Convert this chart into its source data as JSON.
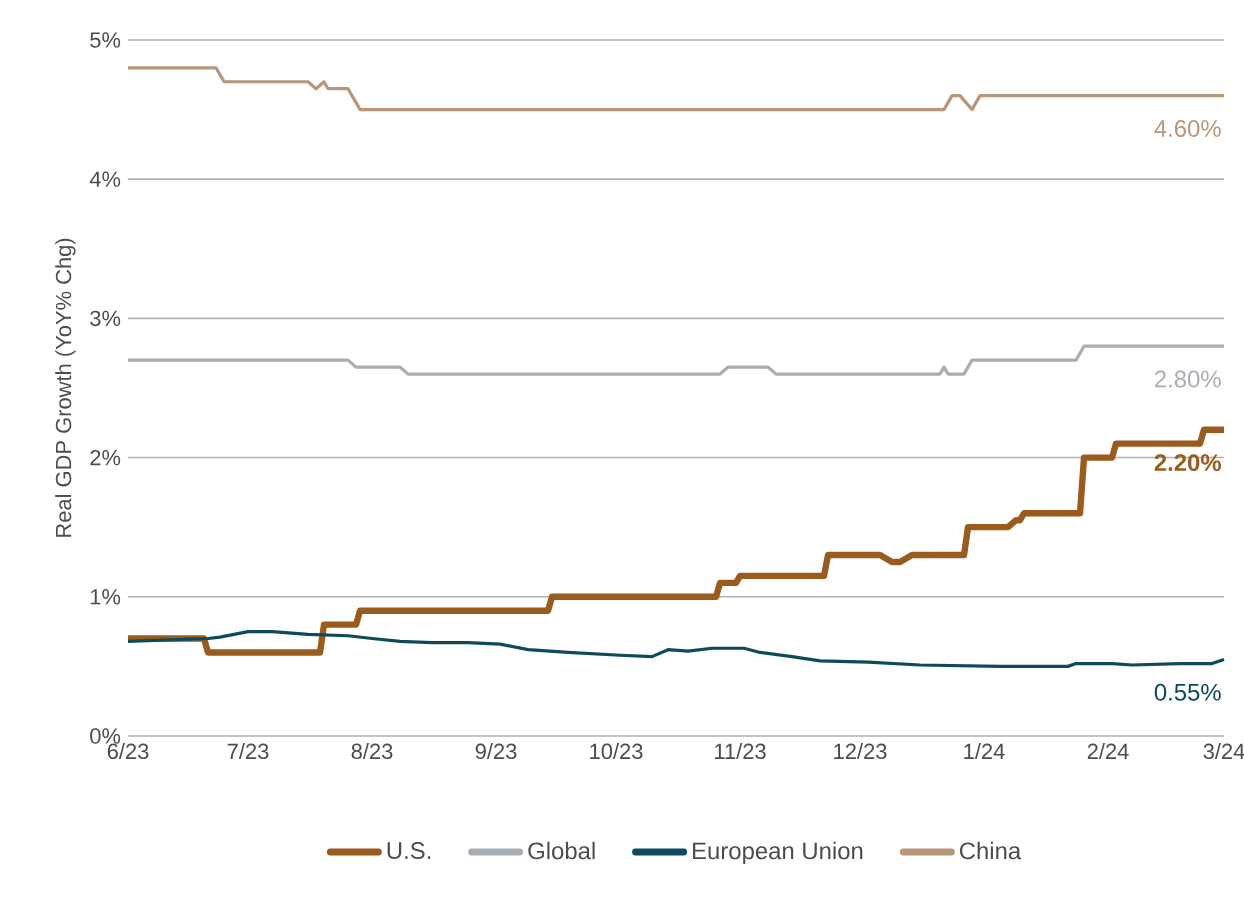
{
  "chart_data": {
    "type": "line",
    "ylabel": "Real GDP Growth (YoY% Chg)",
    "xlim": [
      "2023-06-01",
      "2024-03-01"
    ],
    "xticks": [
      {
        "value": "2023-06-01",
        "label": "6/23"
      },
      {
        "value": "2023-07-01",
        "label": "7/23"
      },
      {
        "value": "2023-08-01",
        "label": "8/23"
      },
      {
        "value": "2023-09-01",
        "label": "9/23"
      },
      {
        "value": "2023-10-01",
        "label": "10/23"
      },
      {
        "value": "2023-11-01",
        "label": "11/23"
      },
      {
        "value": "2023-12-01",
        "label": "12/23"
      },
      {
        "value": "2024-01-01",
        "label": "1/24"
      },
      {
        "value": "2024-02-01",
        "label": "2/24"
      },
      {
        "value": "2024-03-01",
        "label": "3/24"
      }
    ],
    "ylim": [
      0,
      5
    ],
    "yticks": [
      {
        "value": 0,
        "label": "0%"
      },
      {
        "value": 1,
        "label": "1%"
      },
      {
        "value": 2,
        "label": "2%"
      },
      {
        "value": 3,
        "label": "3%"
      },
      {
        "value": 4,
        "label": "4%"
      },
      {
        "value": 5,
        "label": "5%"
      }
    ],
    "grid": "y",
    "legend": "bottom",
    "marker": "none",
    "line_style": "solid",
    "series": [
      {
        "name": "U.S.",
        "color": "#9a5b1e",
        "x": [
          "2023-06-01",
          "2023-06-20",
          "2023-06-21",
          "2023-07-19",
          "2023-07-20",
          "2023-07-28",
          "2023-07-29",
          "2023-09-14",
          "2023-09-15",
          "2023-10-26",
          "2023-10-27",
          "2023-10-31",
          "2023-11-01",
          "2023-11-22",
          "2023-11-23",
          "2023-12-06",
          "2023-12-09",
          "2023-12-11",
          "2023-12-14",
          "2023-12-27",
          "2023-12-28",
          "2024-01-07",
          "2024-01-09",
          "2024-01-10",
          "2024-01-11",
          "2024-01-25",
          "2024-01-26",
          "2024-02-02",
          "2024-02-03",
          "2024-02-24",
          "2024-02-25",
          "2024-03-01"
        ],
        "values": [
          0.7,
          0.7,
          0.6,
          0.6,
          0.8,
          0.8,
          0.9,
          0.9,
          1.0,
          1.0,
          1.1,
          1.1,
          1.15,
          1.15,
          1.3,
          1.3,
          1.25,
          1.25,
          1.3,
          1.3,
          1.5,
          1.5,
          1.55,
          1.55,
          1.6,
          1.6,
          2.0,
          2.0,
          2.1,
          2.1,
          2.2,
          2.2
        ]
      },
      {
        "name": "Global",
        "color": "#a7adb2",
        "x": [
          "2023-06-01",
          "2023-07-26",
          "2023-07-28",
          "2023-08-08",
          "2023-08-10",
          "2023-10-27",
          "2023-10-29",
          "2023-11-08",
          "2023-11-10",
          "2023-12-21",
          "2023-12-22",
          "2023-12-23",
          "2023-12-27",
          "2023-12-29",
          "2024-01-24",
          "2024-01-26",
          "2024-03-01"
        ],
        "values": [
          2.7,
          2.7,
          2.65,
          2.65,
          2.6,
          2.6,
          2.65,
          2.65,
          2.6,
          2.6,
          2.65,
          2.6,
          2.6,
          2.7,
          2.7,
          2.8,
          2.8
        ]
      },
      {
        "name": "European Union",
        "color": "#0e4a5c",
        "x": [
          "2023-06-01",
          "2023-06-11",
          "2023-06-21",
          "2023-06-24",
          "2023-07-01",
          "2023-07-07",
          "2023-07-16",
          "2023-07-26",
          "2023-08-01",
          "2023-08-08",
          "2023-08-16",
          "2023-08-25",
          "2023-09-02",
          "2023-09-09",
          "2023-09-19",
          "2023-10-02",
          "2023-10-10",
          "2023-10-14",
          "2023-10-19",
          "2023-10-25",
          "2023-11-02",
          "2023-11-06",
          "2023-11-14",
          "2023-11-21",
          "2023-12-03",
          "2023-12-16",
          "2024-01-05",
          "2024-01-22",
          "2024-01-24",
          "2024-02-02",
          "2024-02-07",
          "2024-02-19",
          "2024-02-27",
          "2024-03-01"
        ],
        "values": [
          0.68,
          0.69,
          0.7,
          0.71,
          0.75,
          0.75,
          0.73,
          0.72,
          0.7,
          0.68,
          0.67,
          0.67,
          0.66,
          0.62,
          0.6,
          0.58,
          0.57,
          0.62,
          0.61,
          0.63,
          0.63,
          0.6,
          0.57,
          0.54,
          0.53,
          0.51,
          0.5,
          0.5,
          0.52,
          0.52,
          0.51,
          0.52,
          0.52,
          0.55
        ]
      },
      {
        "name": "China",
        "color": "#b8967a",
        "x": [
          "2023-06-01",
          "2023-06-23",
          "2023-06-25",
          "2023-07-16",
          "2023-07-18",
          "2023-07-20",
          "2023-07-21",
          "2023-07-26",
          "2023-07-29",
          "2023-12-22",
          "2023-12-24",
          "2023-12-26",
          "2023-12-29",
          "2023-12-31",
          "2024-03-01"
        ],
        "values": [
          4.8,
          4.8,
          4.7,
          4.7,
          4.65,
          4.7,
          4.65,
          4.65,
          4.5,
          4.5,
          4.6,
          4.6,
          4.5,
          4.6,
          4.6
        ]
      }
    ],
    "annotations": [
      {
        "text": "**2.20%**",
        "x": "2024-03-01",
        "y": 2.2
      },
      {
        "text": "2.80%",
        "x": "2024-03-01",
        "y": 2.8
      },
      {
        "text": "0.55%",
        "x": "2024-03-01",
        "y": 0.55
      },
      {
        "text": "4.60%",
        "x": "2024-03-01",
        "y": 4.6
      }
    ]
  }
}
